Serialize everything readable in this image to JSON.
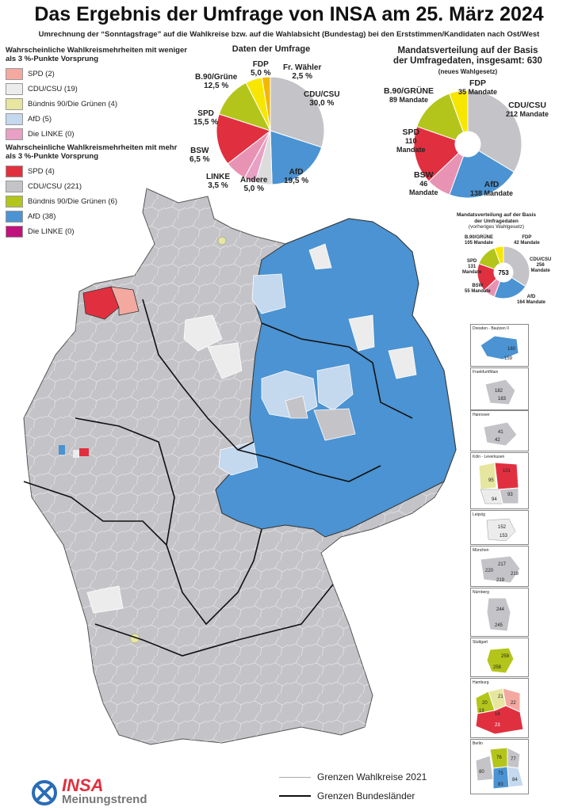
{
  "title": "Das Ergebnis der Umfrage von INSA am 25. März 2024",
  "subtitle": "Umrechnung der “Sonntagsfrage” auf die Wahlkreise bzw. auf die Wahlabsicht (Bundestag) bei den Erststimmen/Kandidaten nach Ost/West",
  "colors": {
    "spd_strong": "#e03040",
    "spd_weak": "#f4a9a0",
    "cdu_strong": "#c4c4c8",
    "cdu_weak": "#ececec",
    "gruene_strong": "#b3c51a",
    "gruene_weak": "#e6e6a0",
    "afd_strong": "#4b93d2",
    "afd_weak": "#c4d8ee",
    "linke_strong": "#c0127c",
    "linke_weak": "#e8a0c4",
    "fdp": "#f7e600",
    "fw": "#f2b800",
    "bsw": "#e893b4",
    "andere": "#dcdcdc"
  },
  "legend_weak": {
    "heading": "Wahrscheinliche Wahlkreismehrheiten mit weniger als 3 %-Punkte Vorsprung",
    "items": [
      "SPD (2)",
      "CDU/CSU (19)",
      "Bündnis 90/Die Grünen (4)",
      "AfD (5)",
      "Die LINKE (0)"
    ]
  },
  "legend_strong": {
    "heading": "Wahrscheinliche Wahlkreismehrheiten mit mehr als 3 %-Punkte Vorsprung",
    "items": [
      "SPD (4)",
      "CDU/CSU (221)",
      "Bündnis 90/Die Grünen (6)",
      "AfD (38)",
      "Die LINKE (0)"
    ]
  },
  "survey_pie": {
    "title": "Daten der Umfrage",
    "labels": {
      "fdp": [
        "FDP",
        "5,0 %"
      ],
      "fw": [
        "Fr. Wähler",
        "2,5 %"
      ],
      "cdu": [
        "CDU/CSU",
        "30,0 %"
      ],
      "afd": [
        "AfD",
        "19,5 %"
      ],
      "andere": [
        "Andere",
        "5,0 %"
      ],
      "linke": [
        "LINKE",
        "3,5 %"
      ],
      "bsw": [
        "BSW",
        "6,5 %"
      ],
      "spd": [
        "SPD",
        "15,5 %"
      ],
      "gruene": [
        "B.90/Grüne",
        "12,5 %"
      ]
    }
  },
  "seats_pie": {
    "title_1": "Mandatsverteilung auf der Basis",
    "title_2": "der Umfragedaten, insgesamt: 630",
    "title_3": "(neues Wahlgesetz)",
    "labels": {
      "fdp": [
        "FDP",
        "35 Mandate"
      ],
      "cdu": [
        "CDU/CSU",
        "212 Mandate"
      ],
      "afd": [
        "AfD",
        "138 Mandate"
      ],
      "bsw": [
        "BSW",
        "46",
        "Mandate"
      ],
      "spd": [
        "SPD",
        "110",
        "Mandate"
      ],
      "gruene": [
        "B.90/GRÜNE",
        "89 Mandate"
      ]
    }
  },
  "old_seats_pie": {
    "title_1": "Mandatsverteilung auf der Basis",
    "title_2": "der Umfragedaten",
    "title_3": "(vorheriges Wahlgesetz)",
    "total": "753",
    "labels": {
      "gruene": [
        "B.90/GRÜNE",
        "105 Mandate"
      ],
      "fdp": [
        "FDP",
        "42 Mandate"
      ],
      "cdu": [
        "CDU/CSU",
        "256",
        "Mandate"
      ],
      "spd": [
        "SPD",
        "131",
        "Mandate"
      ],
      "bsw": [
        "BSW",
        "55 Mandate"
      ],
      "afd": [
        "AfD",
        "164 Mandate"
      ]
    }
  },
  "chart_data": [
    {
      "type": "pie",
      "title": "Daten der Umfrage",
      "categories": [
        "CDU/CSU",
        "AfD",
        "Andere",
        "LINKE",
        "BSW",
        "SPD",
        "B.90/Grüne",
        "FDP",
        "Fr. Wähler"
      ],
      "values": [
        30.0,
        19.5,
        5.0,
        3.5,
        6.5,
        15.5,
        12.5,
        5.0,
        2.5
      ]
    },
    {
      "type": "pie",
      "title": "Mandatsverteilung auf der Basis der Umfragedaten, insgesamt: 630",
      "categories": [
        "CDU/CSU",
        "AfD",
        "BSW",
        "SPD",
        "B.90/GRÜNE",
        "FDP"
      ],
      "values": [
        212,
        138,
        46,
        110,
        89,
        35
      ]
    },
    {
      "type": "pie",
      "title": "Mandatsverteilung auf der Basis der Umfragedaten",
      "categories": [
        "CDU/CSU",
        "AfD",
        "BSW",
        "SPD",
        "B.90/GRÜNE",
        "FDP"
      ],
      "values": [
        256,
        164,
        55,
        131,
        105,
        42
      ]
    }
  ],
  "insets": [
    {
      "name": "Dresden - Bautzen II",
      "numbers": [
        "160",
        "159"
      ]
    },
    {
      "name": "Frankfurt/Main",
      "numbers": [
        "182",
        "183"
      ]
    },
    {
      "name": "Hannover",
      "numbers": [
        "41",
        "42"
      ]
    },
    {
      "name": "Köln - Leverkusen",
      "numbers": [
        "101",
        "95",
        "94",
        "93"
      ]
    },
    {
      "name": "Leipzig",
      "numbers": [
        "152",
        "153"
      ]
    },
    {
      "name": "München",
      "numbers": [
        "217",
        "220",
        "218",
        "219"
      ]
    },
    {
      "name": "Nürnberg",
      "numbers": [
        "244",
        "245"
      ]
    },
    {
      "name": "Stuttgart",
      "numbers": [
        "259",
        "258"
      ]
    },
    {
      "name": "Hamburg",
      "numbers": [
        "21",
        "20",
        "22",
        "19",
        "18",
        "23"
      ]
    },
    {
      "name": "Berlin",
      "numbers": [
        "76",
        "77",
        "75",
        "80",
        "84",
        "83"
      ]
    }
  ],
  "map_legend": {
    "wahlkreise": "Grenzen Wahlkreise 2021",
    "bundeslaender": "Grenzen Bundesländer"
  },
  "logo": {
    "brand": "INSA",
    "tagline": "Meinungstrend"
  }
}
